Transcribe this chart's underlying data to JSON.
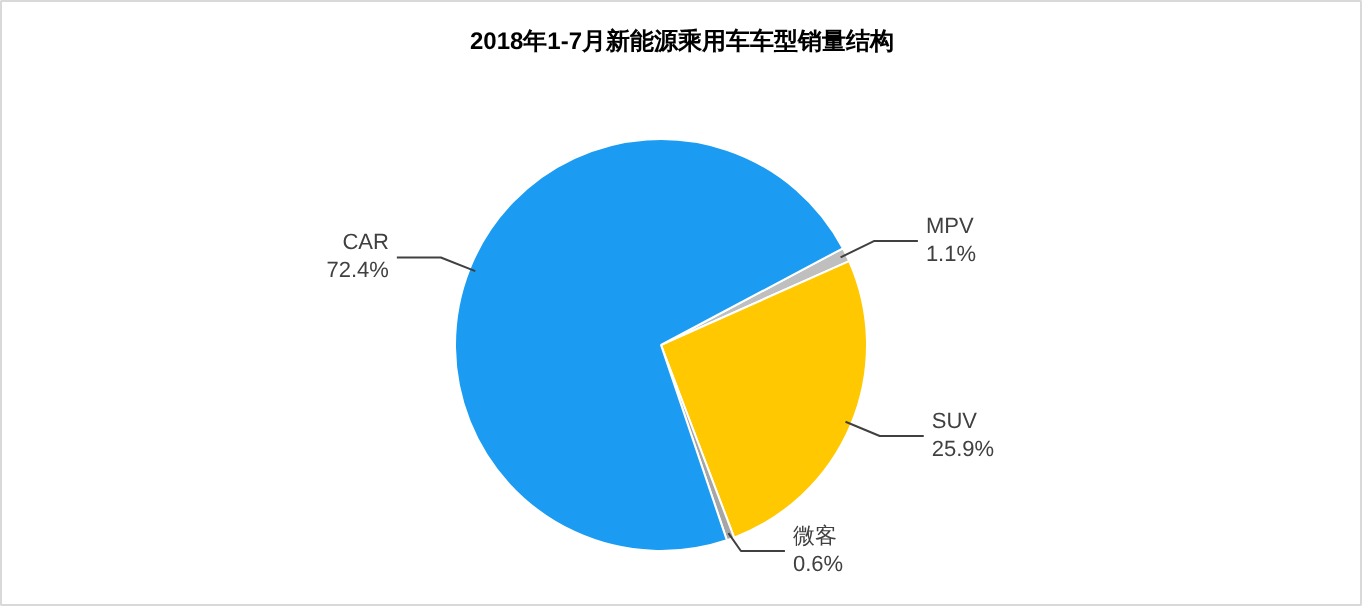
{
  "chart_data": {
    "type": "pie",
    "title": "2018年1-7月新能源乘用车车型销量结构",
    "categories": [
      "MPV",
      "SUV",
      "微客",
      "CAR"
    ],
    "values": [
      1.1,
      25.9,
      0.6,
      72.4
    ],
    "value_labels": [
      "1.1%",
      "25.9%",
      "0.6%",
      "72.4%"
    ],
    "colors": [
      "#bfbfbf",
      "#ffc800",
      "#a6a6a6",
      "#1b9cf2"
    ]
  }
}
